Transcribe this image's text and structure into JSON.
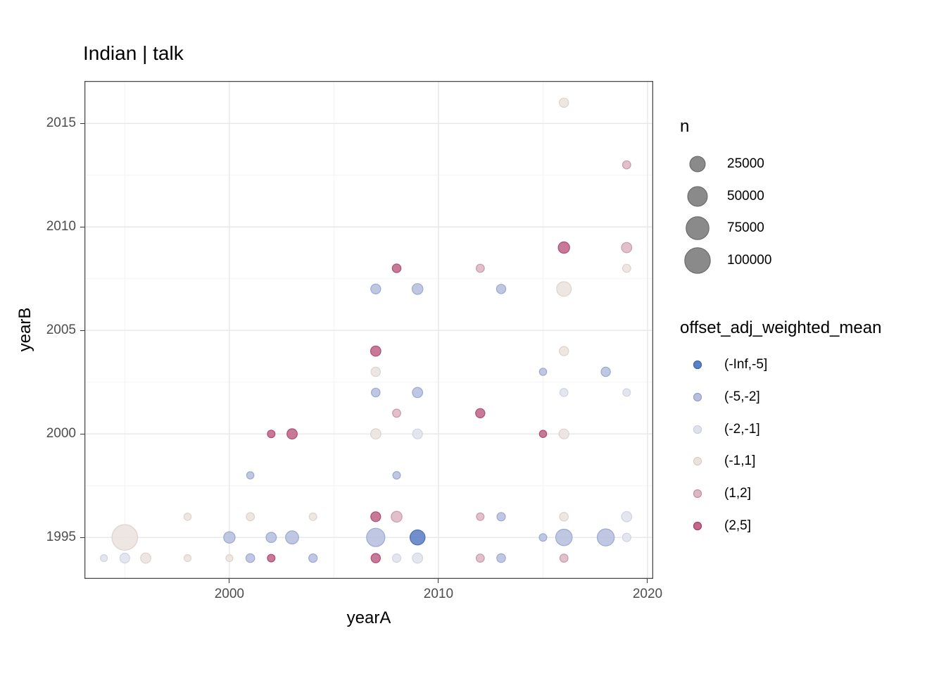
{
  "chart": {
    "title": "Indian | talk",
    "x_label": "yearA",
    "y_label": "yearB"
  },
  "chart_data": {
    "type": "scatter",
    "title": "Indian | talk",
    "xlabel": "yearA",
    "ylabel": "yearB",
    "grid": true,
    "legend_position": "right",
    "x_domain": [
      1993.07,
      2020.27
    ],
    "y_domain": [
      1993.0,
      2017.05
    ],
    "x_ticks": [
      2000,
      2010,
      2020
    ],
    "y_ticks": [
      1995,
      2000,
      2005,
      2010,
      2015
    ],
    "x_minor": [
      1995,
      2005,
      2015
    ],
    "y_minor": [
      1997.5,
      2002.5,
      2007.5,
      2012.5
    ],
    "points_columns": [
      "yearA",
      "yearB",
      "n",
      "bin"
    ],
    "points": [
      [
        1994,
        1994,
        800,
        "(-2,-1]"
      ],
      [
        1995,
        1994,
        5000,
        "(-2,-1]"
      ],
      [
        1996,
        1994,
        6000,
        "(-1,1]"
      ],
      [
        1998,
        1994,
        800,
        "(-1,1]"
      ],
      [
        2000,
        1994,
        800,
        "(-1,1]"
      ],
      [
        2001,
        1994,
        3000,
        "(-5,-2]"
      ],
      [
        2002,
        1994,
        1300,
        "(2,5]"
      ],
      [
        2004,
        1994,
        2500,
        "(-5,-2]"
      ],
      [
        2007,
        1994,
        4000,
        "(2,5]"
      ],
      [
        2008,
        1994,
        2500,
        "(-2,-1]"
      ],
      [
        2009,
        1994,
        6000,
        "(-2,-1]"
      ],
      [
        2012,
        1994,
        2000,
        "(1,2]"
      ],
      [
        2013,
        1994,
        3000,
        "(-5,-2]"
      ],
      [
        2016,
        1994,
        2000,
        "(1,2]"
      ],
      [
        1995,
        1995,
        100000,
        "(-1,1]"
      ],
      [
        2000,
        1995,
        9000,
        "(-5,-2]"
      ],
      [
        2002,
        1995,
        6000,
        "(-5,-2]"
      ],
      [
        2003,
        1995,
        15000,
        "(-5,-2]"
      ],
      [
        2007,
        1995,
        41000,
        "(-5,-2]"
      ],
      [
        2009,
        1995,
        23000,
        "(-Inf,-5]"
      ],
      [
        2015,
        1995,
        1300,
        "(-5,-2]"
      ],
      [
        2016,
        1995,
        30000,
        "(-5,-2]"
      ],
      [
        2018,
        1995,
        33000,
        "(-5,-2]"
      ],
      [
        2019,
        1995,
        2500,
        "(-2,-1]"
      ],
      [
        1998,
        1996,
        1000,
        "(-1,1]"
      ],
      [
        2001,
        1996,
        2000,
        "(-1,1]"
      ],
      [
        2004,
        1996,
        1300,
        "(-1,1]"
      ],
      [
        2007,
        1996,
        5000,
        "(2,5]"
      ],
      [
        2008,
        1996,
        7500,
        "(1,2]"
      ],
      [
        2012,
        1996,
        1300,
        "(1,2]"
      ],
      [
        2013,
        1996,
        2500,
        "(-5,-2]"
      ],
      [
        2016,
        1996,
        3000,
        "(-1,1]"
      ],
      [
        2019,
        1996,
        6000,
        "(-2,-1]"
      ],
      [
        2001,
        1998,
        1000,
        "(-5,-2]"
      ],
      [
        2008,
        1998,
        1300,
        "(-5,-2]"
      ],
      [
        2002,
        2000,
        1300,
        "(2,5]"
      ],
      [
        2003,
        2000,
        6000,
        "(2,5]"
      ],
      [
        2007,
        2000,
        6000,
        "(-1,1]"
      ],
      [
        2009,
        2000,
        5000,
        "(-2,-1]"
      ],
      [
        2015,
        2000,
        1000,
        "(2,5]"
      ],
      [
        2016,
        2000,
        5000,
        "(-1,1]"
      ],
      [
        2008,
        2001,
        2000,
        "(1,2]"
      ],
      [
        2012,
        2001,
        4000,
        "(2,5]"
      ],
      [
        2007,
        2002,
        3000,
        "(-5,-2]"
      ],
      [
        2009,
        2002,
        6000,
        "(-5,-2]"
      ],
      [
        2016,
        2002,
        2000,
        "(-2,-1]"
      ],
      [
        2019,
        2002,
        1300,
        "(-2,-1]"
      ],
      [
        2007,
        2003,
        4000,
        "(-1,1]"
      ],
      [
        2015,
        2003,
        1000,
        "(-5,-2]"
      ],
      [
        2018,
        2003,
        4000,
        "(-5,-2]"
      ],
      [
        2007,
        2004,
        6000,
        "(2,5]"
      ],
      [
        2016,
        2004,
        4000,
        "(-1,1]"
      ],
      [
        2007,
        2007,
        5000,
        "(-5,-2]"
      ],
      [
        2009,
        2007,
        7500,
        "(-5,-2]"
      ],
      [
        2013,
        2007,
        4000,
        "(-5,-2]"
      ],
      [
        2016,
        2007,
        21000,
        "(-1,1]"
      ],
      [
        2008,
        2008,
        3000,
        "(2,5]"
      ],
      [
        2012,
        2008,
        2000,
        "(1,2]"
      ],
      [
        2019,
        2008,
        2000,
        "(-1,1]"
      ],
      [
        2016,
        2009,
        9000,
        "(2,5]"
      ],
      [
        2019,
        2009,
        6000,
        "(1,2]"
      ],
      [
        2019,
        2013,
        2000,
        "(1,2]"
      ],
      [
        2016,
        2016,
        4000,
        "(-1,1]"
      ]
    ]
  },
  "size_legend": {
    "title": "n",
    "key_fill": "#8a8a8a",
    "key_stroke": "#636363",
    "entries": [
      {
        "label": "25000",
        "n": 25000
      },
      {
        "label": "50000",
        "n": 50000
      },
      {
        "label": "75000",
        "n": 75000
      },
      {
        "label": "100000",
        "n": 100000
      }
    ]
  },
  "color_legend": {
    "title": "offset_adj_weighted_mean",
    "entries": [
      {
        "label": "(-Inf,-5]",
        "fill": "#5c80c4",
        "stroke": "#3a64b0"
      },
      {
        "label": "(-5,-2]",
        "fill": "#b6bfdf",
        "stroke": "#91a0cd"
      },
      {
        "label": "(-2,-1]",
        "fill": "#dfe2ec",
        "stroke": "#c9cfdf"
      },
      {
        "label": "(-1,1]",
        "fill": "#ebe2de",
        "stroke": "#daccc7"
      },
      {
        "label": "(1,2]",
        "fill": "#ddb7c1",
        "stroke": "#c28fa2"
      },
      {
        "label": "(2,5]",
        "fill": "#c2678a",
        "stroke": "#a43c68"
      }
    ]
  },
  "style_colors": {
    "panel_border": "#474747",
    "grid_major": "#e7e7e7",
    "grid_minor": "#f4f4f4",
    "tick_text": "#4d4d4d",
    "tick_mark": "#333333"
  }
}
